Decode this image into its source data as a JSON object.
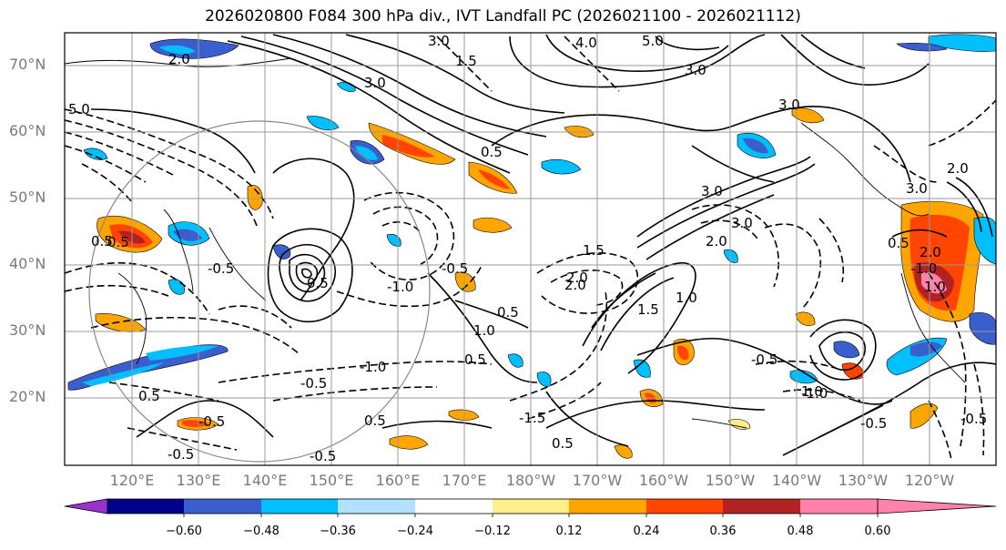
{
  "title": "2026020800 F084 300 hPa div., IVT Landfall PC (2026021100 - 2026021112)",
  "lat_labels": [
    "70°N",
    "60°N",
    "50°N",
    "40°N",
    "30°N",
    "20°N"
  ],
  "lon_labels": [
    "120°E",
    "130°E",
    "140°E",
    "150°E",
    "160°E",
    "170°E",
    "180°W",
    "170°W",
    "160°W",
    "150°W",
    "140°W",
    "130°W",
    "120°W"
  ],
  "colorbar": {
    "ticks": [
      "−0.60",
      "−0.48",
      "−0.36",
      "−0.24",
      "−0.12",
      "0.12",
      "0.24",
      "0.36",
      "0.48",
      "0.60"
    ],
    "colors": [
      "#9932cc",
      "#00008b",
      "#3a5fcd",
      "#00bfff",
      "#b0e2ff",
      "#ffffff",
      "#ffec8b",
      "#ffa500",
      "#ff4500",
      "#b22222",
      "#ff82ab"
    ]
  },
  "contour_labels": [
    "2.0",
    "3.0",
    "5.0",
    "4.0",
    "3.0",
    "1.5",
    "5.0",
    "3.0",
    "3.0",
    "1.0",
    "0.5",
    "2.0",
    "3.0",
    "1.5",
    "0.5",
    "-0.5",
    "-1.0",
    "-0.5",
    "0.5",
    "0.5",
    "-0.5",
    "-1.5",
    "1.0",
    "1.5",
    "2.0",
    "0.5",
    "-0.5",
    "-0.5",
    "1.0",
    "0.5",
    "-1.0",
    "-0.5",
    "0.5",
    "-0.5",
    "0.5",
    "-1.0",
    "3.0",
    "3.0",
    "2.0",
    "2.0",
    "-1.0",
    "-0.5",
    "0.5",
    "1.0",
    "2.0",
    "0.5",
    "-0.5"
  ]
}
